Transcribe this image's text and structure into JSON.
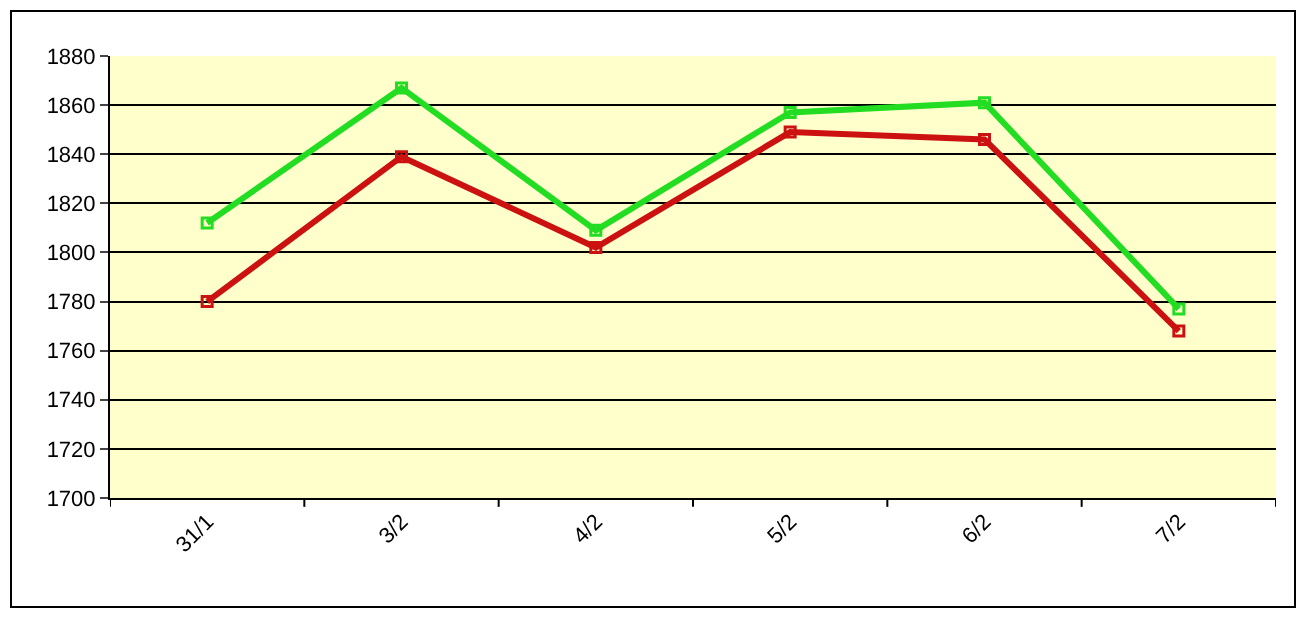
{
  "chart_data": {
    "type": "line",
    "categories": [
      "31/1",
      "3/2",
      "4/2",
      "5/2",
      "6/2",
      "7/2"
    ],
    "series": [
      {
        "color": "#22dd22",
        "values": [
          1812,
          1867,
          1809,
          1857,
          1861,
          1777
        ]
      },
      {
        "color": "#cc1111",
        "values": [
          1780,
          1839,
          1802,
          1849,
          1846,
          1768
        ]
      }
    ],
    "ylim": [
      1700,
      1880
    ],
    "yticks": [
      1700,
      1720,
      1740,
      1760,
      1780,
      1800,
      1820,
      1840,
      1860,
      1880
    ],
    "grid": "y",
    "marker": "square",
    "line_style": "solid"
  }
}
